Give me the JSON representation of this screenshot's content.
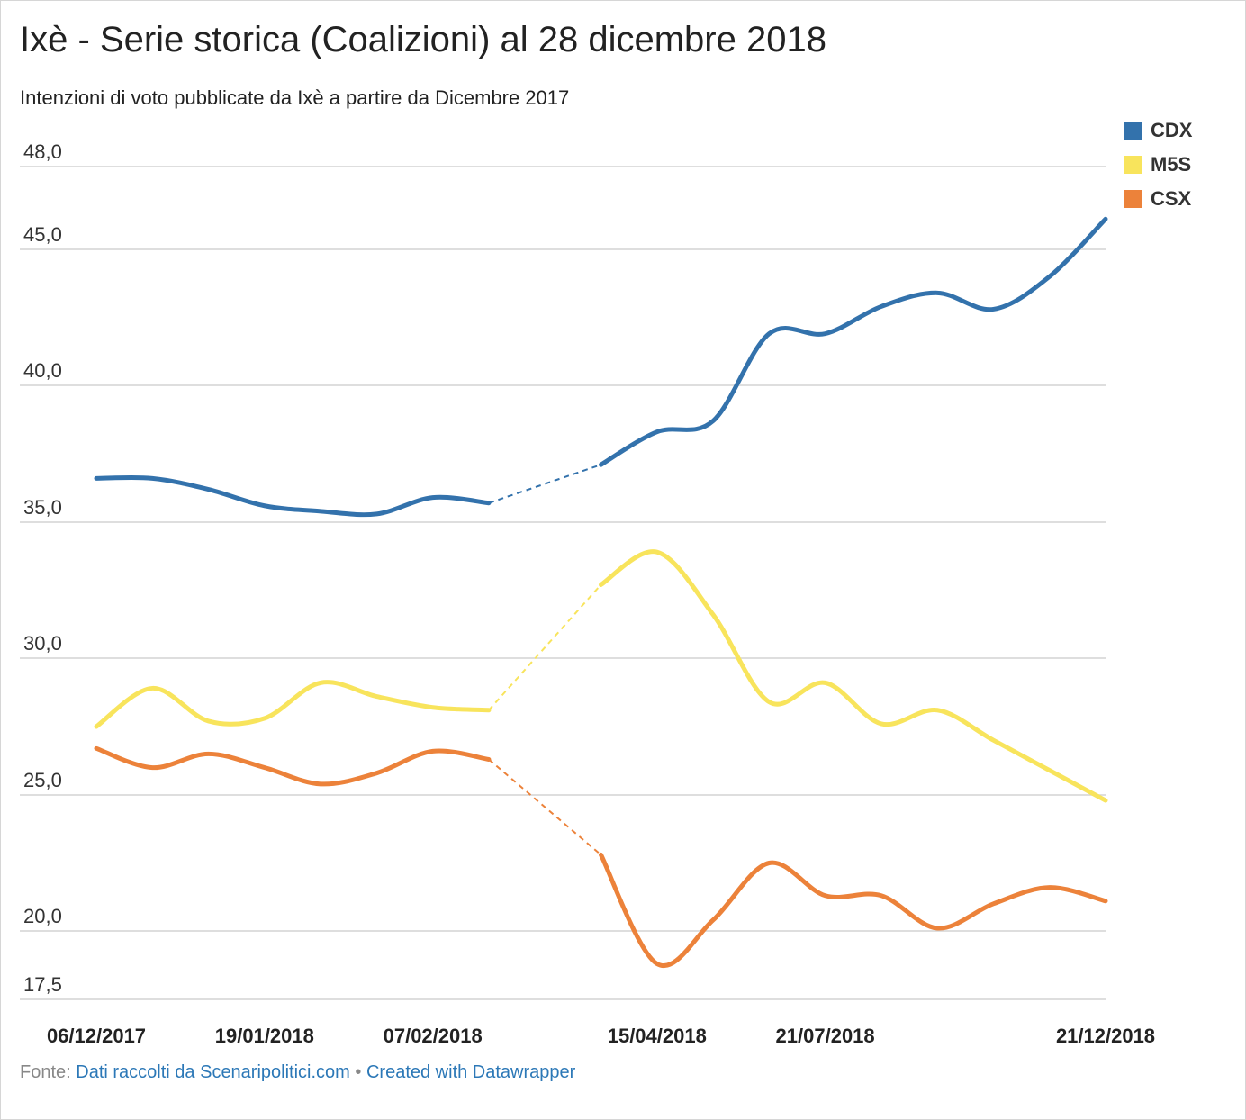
{
  "chart_data": {
    "type": "line",
    "title": "Ixè - Serie storica (Coalizioni) al 28 dicembre 2018",
    "subtitle": "Intenzioni di voto pubblicate da Ixè a partire da Dicembre 2017",
    "ylim": [
      17.5,
      48.0
    ],
    "y_ticks": [
      "48,0",
      "45,0",
      "40,0",
      "35,0",
      "30,0",
      "25,0",
      "20,0",
      "17,5"
    ],
    "y_tick_values": [
      48.0,
      45.0,
      40.0,
      35.0,
      30.0,
      25.0,
      20.0,
      17.5
    ],
    "x_tick_labels": [
      "06/12/2017",
      "19/01/2018",
      "07/02/2018",
      "15/04/2018",
      "21/07/2018",
      "21/12/2018"
    ],
    "x_tick_index": [
      0,
      3,
      6,
      10,
      13,
      18
    ],
    "x_count": 19,
    "gap_between": [
      7,
      9
    ],
    "grid": true,
    "legend_position": "top-right",
    "series": [
      {
        "name": "CDX",
        "color": "#3372ac",
        "values": [
          36.6,
          36.6,
          36.2,
          35.6,
          35.4,
          35.3,
          35.9,
          35.7,
          null,
          37.1,
          38.3,
          38.7,
          41.9,
          41.9,
          42.9,
          43.4,
          42.8,
          44.0,
          46.1
        ]
      },
      {
        "name": "M5S",
        "color": "#f8e45c",
        "values": [
          27.5,
          28.9,
          27.7,
          27.8,
          29.1,
          28.6,
          28.2,
          28.1,
          null,
          32.7,
          33.9,
          31.6,
          28.4,
          29.1,
          27.6,
          28.1,
          27.0,
          25.9,
          24.8
        ]
      },
      {
        "name": "CSX",
        "color": "#ec823a",
        "values": [
          26.7,
          26.0,
          26.5,
          26.0,
          25.4,
          25.8,
          26.6,
          26.3,
          null,
          22.8,
          18.8,
          20.4,
          22.5,
          21.3,
          21.3,
          20.1,
          21.0,
          21.6,
          21.1
        ]
      }
    ]
  },
  "footer": {
    "source_prefix": "Fonte:",
    "source_link": "Dati raccolti da Scenaripolitici.com",
    "separator": "•",
    "credit": "Created with Datawrapper"
  }
}
